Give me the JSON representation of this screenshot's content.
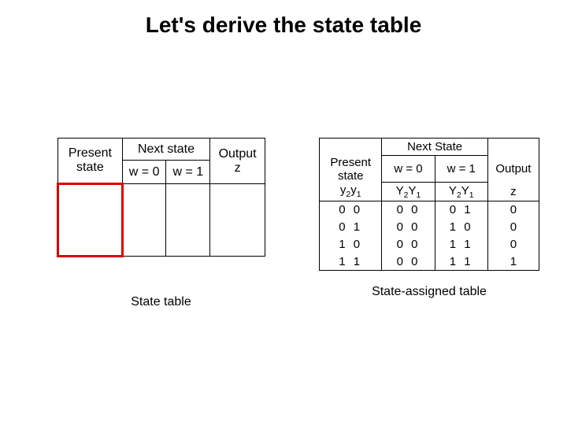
{
  "title": "Let's derive the state table",
  "left": {
    "present": "Present state",
    "next": "Next state",
    "w0": "w = 0",
    "w1": "w = 1",
    "output": "Output z",
    "caption": "State table"
  },
  "right": {
    "present": "Present state",
    "next": "Next State",
    "w0": "w = 0",
    "w1": "w = 1",
    "output": "Output",
    "z": "z",
    "y_label_html": "y<span class=\"sub\">2</span>y<span class=\"sub\">1</span>",
    "Y_label_html": "Y<span class=\"sub\">2</span>Y<span class=\"sub\">1</span>",
    "rows": [
      {
        "ps": "0 0",
        "n0": "0 0",
        "n1": "0 1",
        "z": "0"
      },
      {
        "ps": "0 1",
        "n0": "0 0",
        "n1": "1 0",
        "z": "0"
      },
      {
        "ps": "1 0",
        "n0": "0 0",
        "n1": "1 1",
        "z": "0"
      },
      {
        "ps": "1 1",
        "n0": "0 0",
        "n1": "1 1",
        "z": "1"
      }
    ],
    "caption": "State-assigned table"
  }
}
